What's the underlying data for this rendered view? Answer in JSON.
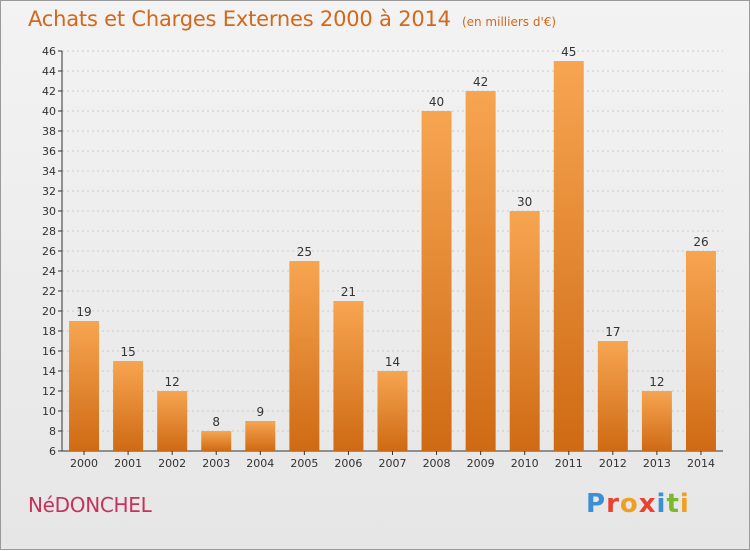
{
  "chart": {
    "title": "Achats et Charges Externes 2000 à 2014",
    "subtitle": "(en milliers d'€)",
    "commune": "NéDONCHEL",
    "logo": "Proxiti"
  },
  "colors": {
    "bar_light": "#f7a551",
    "bar_dark": "#cf6a14",
    "title": "#d2681c",
    "commune": "#c8325a",
    "axis": "#333333",
    "grid": "#cccccc"
  },
  "chart_data": {
    "type": "bar",
    "title": "Achats et Charges Externes 2000 à 2014",
    "subtitle": "(en milliers d'€)",
    "categories": [
      "2000",
      "2001",
      "2002",
      "2003",
      "2004",
      "2005",
      "2006",
      "2007",
      "2008",
      "2009",
      "2010",
      "2011",
      "2012",
      "2013",
      "2014"
    ],
    "values": [
      19,
      15,
      12,
      8,
      9,
      25,
      21,
      14,
      40,
      42,
      30,
      45,
      17,
      12,
      26
    ],
    "ylim": [
      6,
      46
    ],
    "yticks": [
      6,
      8,
      10,
      12,
      14,
      16,
      18,
      20,
      22,
      24,
      26,
      28,
      30,
      32,
      34,
      36,
      38,
      40,
      42,
      44,
      46
    ],
    "grid": true,
    "data_labels": true,
    "legend": "none"
  }
}
